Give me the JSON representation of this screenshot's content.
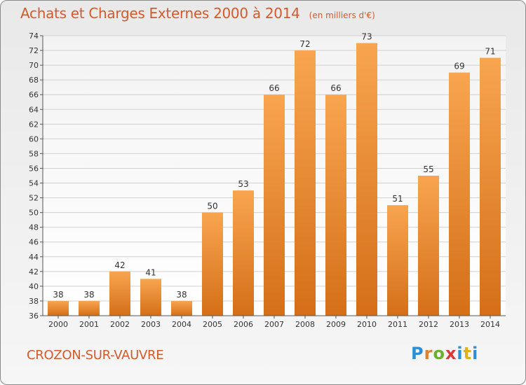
{
  "title": "Achats et Charges Externes 2000 à 2014",
  "subtitle": "(en milliers d'€)",
  "commune": "CROZON-SUR-VAUVRE",
  "logo": {
    "text": "Proxiti"
  },
  "colors": {
    "bar_light": "#f8a550",
    "bar_dark": "#d46f18",
    "title": "#d45a2c",
    "grid": "#d0d0d0"
  },
  "chart_data": {
    "type": "bar",
    "title": "Achats et Charges Externes 2000 à 2014",
    "subtitle": "(en milliers d'€)",
    "xlabel": "",
    "ylabel": "",
    "ylim": [
      36,
      74
    ],
    "ytick_step": 2,
    "grid": true,
    "categories": [
      "2000",
      "2001",
      "2002",
      "2003",
      "2004",
      "2005",
      "2006",
      "2007",
      "2008",
      "2009",
      "2010",
      "2011",
      "2012",
      "2013",
      "2014"
    ],
    "values": [
      38,
      38,
      42,
      41,
      38,
      50,
      53,
      66,
      72,
      66,
      73,
      51,
      55,
      69,
      71
    ]
  }
}
